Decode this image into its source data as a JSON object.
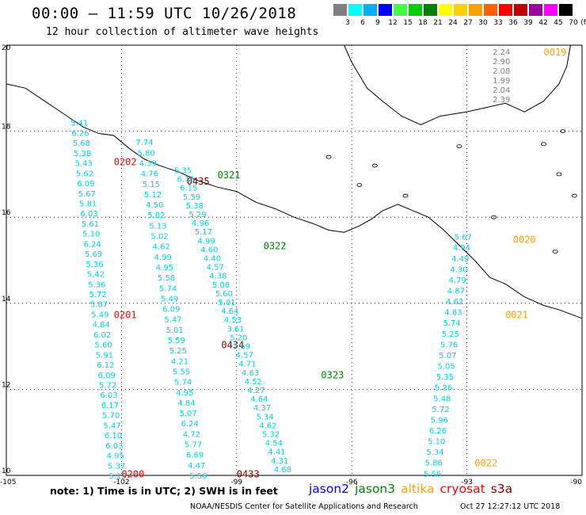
{
  "title": "00:00 – 11:59 UTC 10/26/2018",
  "subtitle": "12 hour collection of altimeter wave heights",
  "legend": {
    "unit": "(ft)",
    "bins": [
      {
        "label": "3",
        "color": "#808080"
      },
      {
        "label": "6",
        "color": "#00ffff"
      },
      {
        "label": "9",
        "color": "#00b0ff"
      },
      {
        "label": "12",
        "color": "#0000ff"
      },
      {
        "label": "15",
        "color": "#40ff40"
      },
      {
        "label": "18",
        "color": "#00d000"
      },
      {
        "label": "21",
        "color": "#008000"
      },
      {
        "label": "24",
        "color": "#ffff00"
      },
      {
        "label": "27",
        "color": "#ffd000"
      },
      {
        "label": "30",
        "color": "#ffa000"
      },
      {
        "label": "33",
        "color": "#ff6000"
      },
      {
        "label": "36",
        "color": "#ff0000"
      },
      {
        "label": "39",
        "color": "#c00000"
      },
      {
        "label": "42",
        "color": "#a000a0"
      },
      {
        "label": "45",
        "color": "#ff00ff"
      },
      {
        "label": "70",
        "color": "#000000"
      }
    ]
  },
  "map": {
    "lon_range": [
      -105,
      -90
    ],
    "lat_range": [
      10,
      20
    ],
    "lat_labels": [
      "20",
      "18",
      "16",
      "14",
      "12",
      "10"
    ],
    "lon_labels": [
      "-105",
      "-102",
      "-99",
      "-96",
      "-93",
      "-90"
    ]
  },
  "satellite_colors": {
    "jason2": "#0000ff",
    "jason3": "#008000",
    "altika": "#ffa000",
    "cryosat": "#ff0000",
    "s3a": "#800000"
  },
  "tracks": [
    {
      "sat": "cryosat",
      "start": [
        -103.1,
        18.2
      ],
      "end": [
        -102.1,
        10.0
      ],
      "times": [
        {
          "label": "0202",
          "lon": -102.2,
          "lat": 17.3
        },
        {
          "label": "0201",
          "lon": -102.2,
          "lat": 13.75
        },
        {
          "label": "0200",
          "lon": -102.0,
          "lat": 10.05
        }
      ],
      "values": [
        "5.41",
        "6.26",
        "5.68",
        "5.38",
        "5.43",
        "5.62",
        "6.09",
        "5.67",
        "5.81",
        "6.03",
        "5.61",
        "5.10",
        "6.24",
        "5.69",
        "5.36",
        "5.42",
        "5.36",
        "5.72",
        "5.87",
        "5.49",
        "4.84",
        "6.02",
        "5.60",
        "5.91",
        "6.12",
        "6.09",
        "5.72",
        "6.03",
        "6.17",
        "5.70",
        "5.47",
        "6.10",
        "6.03",
        "4.95",
        "5.37",
        "5.15"
      ]
    },
    {
      "sat": "s3a",
      "start": [
        -101.4,
        17.75
      ],
      "end": [
        -100.0,
        10.0
      ],
      "times": [
        {
          "label": "0435",
          "lon": -100.3,
          "lat": 16.85
        },
        {
          "label": "0434",
          "lon": -99.4,
          "lat": 13.05
        },
        {
          "label": "0433",
          "lon": -99.0,
          "lat": 10.05
        }
      ],
      "values": [
        "7.74",
        "5.80",
        "4.39",
        "4.76",
        "5.15",
        "5.12",
        "4.50",
        "5.82",
        "5.13",
        "5.02",
        "4.62",
        "4.99",
        "4.95",
        "5.58",
        "5.74",
        "5.49",
        "6.09",
        "5.47",
        "5.01",
        "5.59",
        "5.25",
        "4.21",
        "5.55",
        "5.74",
        "4.95",
        "4.84",
        "5.07",
        "6.24",
        "4.72",
        "5.77",
        "6.69",
        "4.47",
        "5.56"
      ]
    },
    {
      "sat": "jason3",
      "start": [
        -100.4,
        17.1
      ],
      "end": [
        -97.8,
        10.15
      ],
      "times": [
        {
          "label": "0321",
          "lon": -99.5,
          "lat": 17.0
        },
        {
          "label": "0322",
          "lon": -98.3,
          "lat": 15.35
        },
        {
          "label": "0323",
          "lon": -96.8,
          "lat": 12.35
        }
      ],
      "values": [
        "5.35",
        "6.15",
        "6.15",
        "5.59",
        "5.38",
        "5.29",
        "4.96",
        "5.17",
        "4.99",
        "4.60",
        "4.40",
        "4.57",
        "4.38",
        "5.08",
        "5.60",
        "5.01",
        "4.64",
        "4.53",
        "3.61",
        "5.20",
        "3.69",
        "4.57",
        "4.71",
        "4.63",
        "4.52",
        "4.27",
        "4.64",
        "4.37",
        "5.34",
        "4.62",
        "5.32",
        "4.54",
        "4.41",
        "4.31",
        "4.68"
      ]
    },
    {
      "sat": "altika",
      "start": [
        -93.1,
        15.55
      ],
      "end": [
        -93.9,
        10.05
      ],
      "times": [
        {
          "label": "0020",
          "lon": -91.8,
          "lat": 15.5
        },
        {
          "label": "0021",
          "lon": -92.0,
          "lat": 13.75
        },
        {
          "label": "0022",
          "lon": -92.8,
          "lat": 10.3
        }
      ],
      "values": [
        "5.67",
        "4.94",
        "4.49",
        "4.30",
        "4.79",
        "4.87",
        "4.62",
        "4.83",
        "5.74",
        "5.25",
        "5.76",
        "5.07",
        "5.05",
        "5.35",
        "5.26",
        "5.48",
        "5.72",
        "5.96",
        "6.26",
        "5.10",
        "5.34",
        "5.86",
        "5.56"
      ]
    },
    {
      "sat": "altika",
      "start": [
        -92.1,
        19.85
      ],
      "end": [
        -92.1,
        18.75
      ],
      "times": [
        {
          "label": "0019",
          "lon": -91.0,
          "lat": 19.85
        }
      ],
      "values": [
        "2.24",
        "2.90",
        "2.08",
        "1.99",
        "2.04",
        "2.39"
      ]
    }
  ],
  "note": "note: 1) Time is in UTC; 2) SWH is in feet",
  "satellites": [
    "jason2",
    "jason3",
    "altika",
    "cryosat",
    "s3a"
  ],
  "credit": "NOAA/NESDIS Center for Satellite Applications and Research",
  "timestamp": "Oct 27 12:27:12 UTC 2018"
}
